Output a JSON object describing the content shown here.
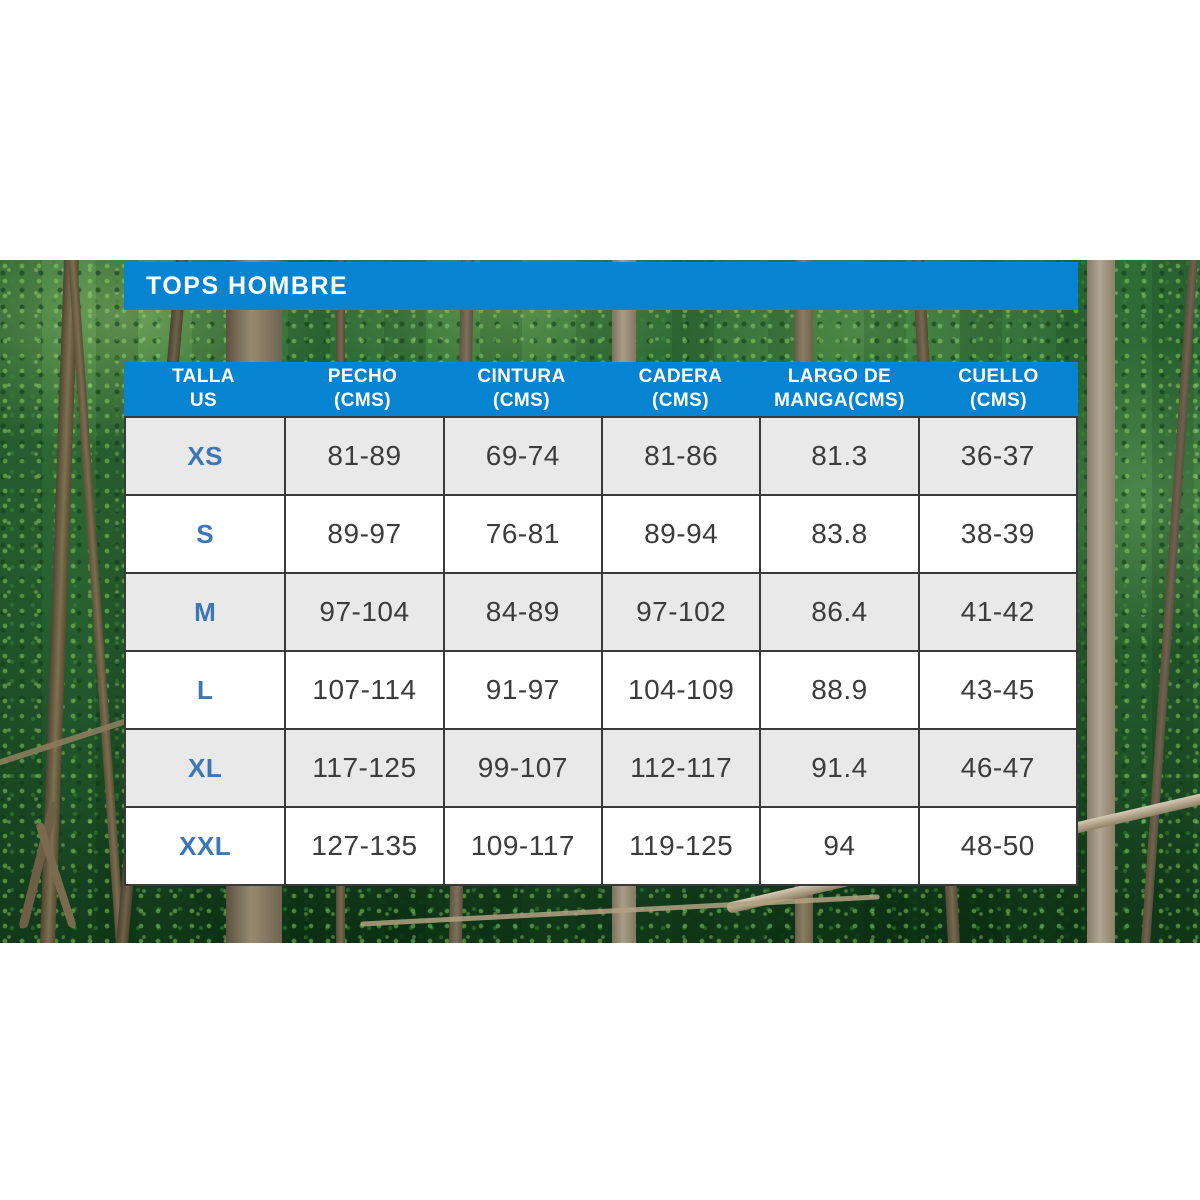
{
  "title_bar": {
    "label": "TOPS HOMBRE"
  },
  "table": {
    "header": [
      {
        "line1": "TALLA",
        "line2": "US"
      },
      {
        "line1": "PECHO",
        "line2": "(CMS)"
      },
      {
        "line1": "CINTURA",
        "line2": "(CMS)"
      },
      {
        "line1": "CADERA",
        "line2": "(CMS)"
      },
      {
        "line1": "LARGO DE",
        "line2": "MANGA(CMS)"
      },
      {
        "line1": "CUELLO",
        "line2": "(CMS)"
      }
    ],
    "rows": [
      {
        "size": "XS",
        "values": [
          "81-89",
          "69-74",
          "81-86",
          "81.3",
          "36-37"
        ]
      },
      {
        "size": "S",
        "values": [
          "89-97",
          "76-81",
          "89-94",
          "83.8",
          "38-39"
        ]
      },
      {
        "size": "M",
        "values": [
          "97-104",
          "84-89",
          "97-102",
          "86.4",
          "41-42"
        ]
      },
      {
        "size": "L",
        "values": [
          "107-114",
          "91-97",
          "104-109",
          "88.9",
          "43-45"
        ]
      },
      {
        "size": "XL",
        "values": [
          "117-125",
          "99-107",
          "112-117",
          "91.4",
          "46-47"
        ]
      },
      {
        "size": "XXL",
        "values": [
          "127-135",
          "109-117",
          "119-125",
          "94",
          "48-50"
        ]
      }
    ]
  },
  "chart_data": {
    "type": "table",
    "title": "TOPS HOMBRE",
    "columns": [
      "TALLA US",
      "PECHO (CMS)",
      "CINTURA (CMS)",
      "CADERA (CMS)",
      "LARGO DE MANGA(CMS)",
      "CUELLO (CMS)"
    ],
    "rows": [
      [
        "XS",
        "81-89",
        "69-74",
        "81-86",
        "81.3",
        "36-37"
      ],
      [
        "S",
        "89-97",
        "76-81",
        "89-94",
        "83.8",
        "38-39"
      ],
      [
        "M",
        "97-104",
        "84-89",
        "97-102",
        "86.4",
        "41-42"
      ],
      [
        "L",
        "107-114",
        "91-97",
        "104-109",
        "88.9",
        "43-45"
      ],
      [
        "XL",
        "117-125",
        "99-107",
        "112-117",
        "91.4",
        "46-47"
      ],
      [
        "XXL",
        "127-135",
        "109-117",
        "119-125",
        "94",
        "48-50"
      ]
    ]
  },
  "colors": {
    "header_blue": "#0683d1",
    "size_label_blue": "#3b76b7",
    "row_alt_gray": "#e9e9e9",
    "row_white": "#ffffff",
    "border_dark": "#3a3a3a",
    "value_text": "#3c3c3c",
    "header_text": "#ffffff"
  }
}
